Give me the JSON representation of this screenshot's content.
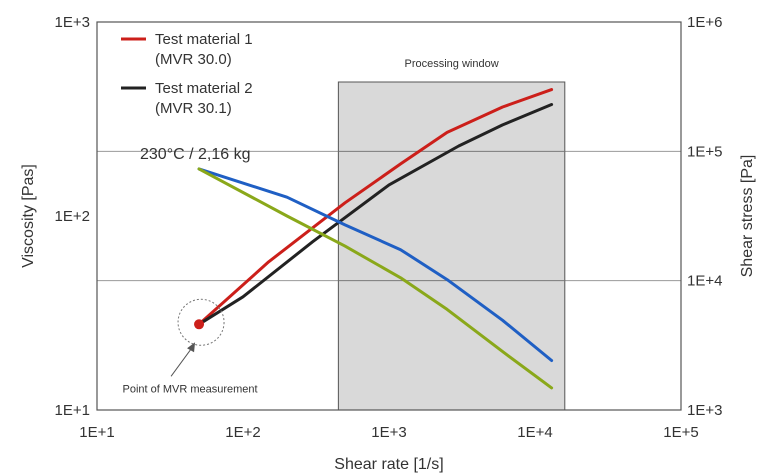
{
  "chart_data": {
    "type": "line",
    "xlabel": "Shear rate [1/s]",
    "ylabel_left": "Viscosity [Pas]",
    "ylabel_right": "Shear stress [Pa]",
    "x_scale": "log",
    "y_scale": "log",
    "xlim": [
      10,
      100000
    ],
    "ylim_left": [
      10,
      1000
    ],
    "ylim_right": [
      1000,
      1000000
    ],
    "x_ticks": [
      "1E+1",
      "1E+2",
      "1E+3",
      "1E+4",
      "1E+5"
    ],
    "y_ticks_left": [
      "1E+1",
      "1E+2",
      "1E+3"
    ],
    "y_ticks_right": [
      "1E+3",
      "1E+4",
      "1E+5",
      "1E+6"
    ],
    "grid": "horizontal",
    "legend_position": "top-left",
    "legend": [
      {
        "label": "Test material 1",
        "sub": "(MVR 30.0)",
        "color": "#cc1f1a"
      },
      {
        "label": "Test material 2",
        "sub": "(MVR 30.1)",
        "color": "#222222"
      }
    ],
    "annotations": {
      "condition": "230°C / 2,16 kg",
      "window_label": "Processing window",
      "mvr_label": "Point of MVR measurement"
    },
    "processing_window": {
      "x": [
        450,
        16000
      ]
    },
    "mvr_point": {
      "x": 50,
      "y": 4600
    },
    "series": [
      {
        "axis": "right",
        "color": "#cc1f1a",
        "x": [
          50,
          150,
          500,
          1200,
          2500,
          6000,
          13000
        ],
        "y": [
          4600,
          14000,
          40000,
          80000,
          140000,
          220000,
          300000
        ]
      },
      {
        "axis": "right",
        "color": "#222222",
        "x": [
          50,
          100,
          300,
          1000,
          3000,
          6000,
          13000
        ],
        "y": [
          4600,
          7500,
          20000,
          55000,
          110000,
          160000,
          230000
        ]
      },
      {
        "axis": "left",
        "color": "#1f5fc4",
        "x": [
          50,
          200,
          500,
          1200,
          2500,
          6000,
          13000
        ],
        "y": [
          175,
          125,
          90,
          67,
          47,
          29,
          18
        ]
      },
      {
        "axis": "left",
        "color": "#8aa81a",
        "x": [
          50,
          200,
          500,
          1200,
          2500,
          6000,
          13000
        ],
        "y": [
          175,
          100,
          70,
          48,
          33,
          20,
          13
        ]
      }
    ]
  }
}
